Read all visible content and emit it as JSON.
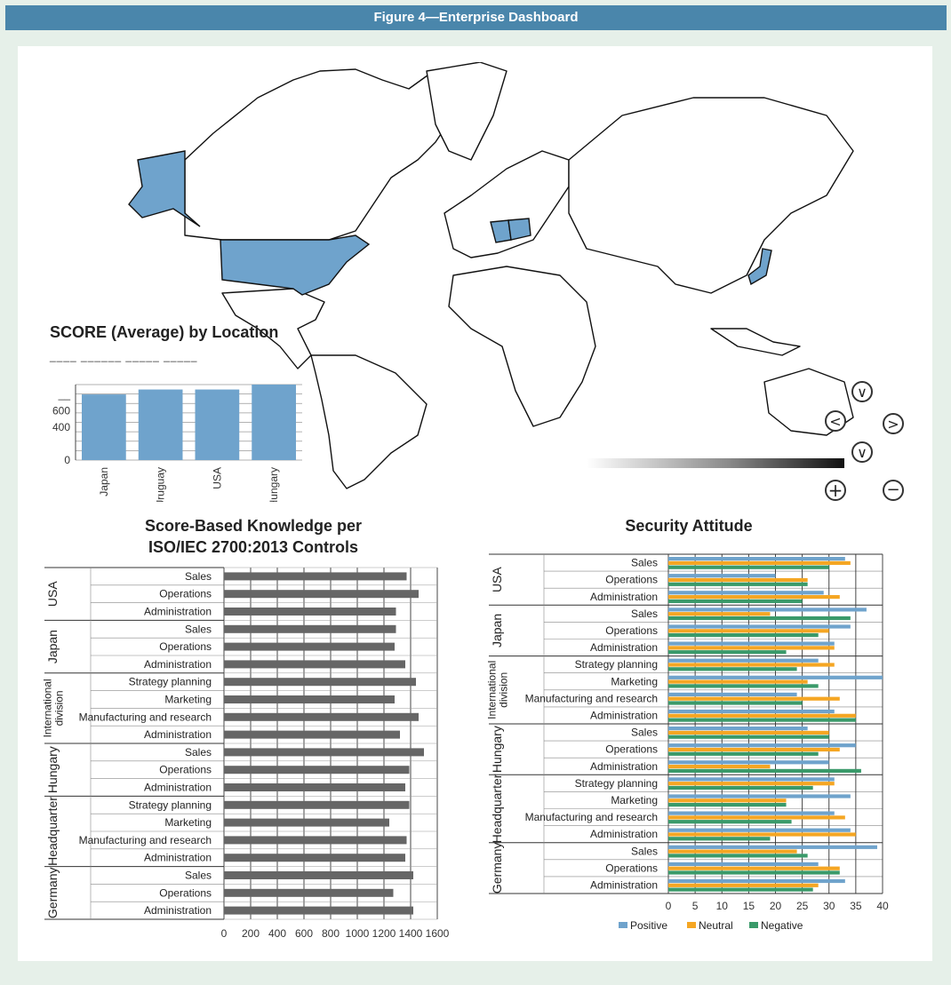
{
  "page": {
    "figure_title": "Figure 4—Enterprise Dashboard"
  },
  "map": {
    "highlighted_countries": [
      "USA",
      "Alaska (USA)",
      "Germany",
      "Poland",
      "Japan"
    ],
    "highlight_color": "#6fa3cc",
    "controls": {
      "up": "∨",
      "left": "<",
      "right": ">",
      "down": "∨",
      "zoom_in": "+",
      "zoom_out": "−"
    },
    "gradient_colors": [
      "#ffffff",
      "#111111"
    ]
  },
  "chart_data": [
    {
      "id": "score_by_location",
      "type": "bar",
      "title": "SCORE (Average) by Location",
      "subtitle": "____  ______  _____  _____",
      "categories": [
        "Japan",
        "Uruguay",
        "USA",
        "Hungary"
      ],
      "values": [
        800,
        860,
        860,
        920
      ],
      "yticks": [
        "0",
        "400",
        "600",
        "__"
      ],
      "ylim": [
        0,
        920
      ],
      "color": "#6fa3cc",
      "grid": true
    },
    {
      "id": "score_knowledge",
      "type": "bar",
      "orientation": "horizontal",
      "title_lines": [
        "Score-Based Knowledge per",
        "ISO/IEC 2700:2013 Controls"
      ],
      "groups": [
        {
          "name": "USA",
          "items": [
            {
              "label": "Sales",
              "value": 1370
            },
            {
              "label": "Operations",
              "value": 1460
            },
            {
              "label": "Administration",
              "value": 1290
            }
          ]
        },
        {
          "name": "Japan",
          "items": [
            {
              "label": "Sales",
              "value": 1290
            },
            {
              "label": "Operations",
              "value": 1280
            },
            {
              "label": "Administration",
              "value": 1360
            }
          ]
        },
        {
          "name": "International division",
          "name_lines": [
            "International",
            "division"
          ],
          "items": [
            {
              "label": "Strategy planning",
              "value": 1440
            },
            {
              "label": "Marketing",
              "value": 1280
            },
            {
              "label": "Manufacturing and research",
              "value": 1460
            },
            {
              "label": "Administration",
              "value": 1320
            }
          ]
        },
        {
          "name": "Hungary",
          "items": [
            {
              "label": "Sales",
              "value": 1500
            },
            {
              "label": "Operations",
              "value": 1390
            },
            {
              "label": "Administration",
              "value": 1360
            }
          ]
        },
        {
          "name": "Headquarter",
          "items": [
            {
              "label": "Strategy planning",
              "value": 1390
            },
            {
              "label": "Marketing",
              "value": 1240
            },
            {
              "label": "Manufacturing and research",
              "value": 1370
            },
            {
              "label": "Administration",
              "value": 1360
            }
          ]
        },
        {
          "name": "Germany",
          "items": [
            {
              "label": "Sales",
              "value": 1420
            },
            {
              "label": "Operations",
              "value": 1270
            },
            {
              "label": "Administration",
              "value": 1420
            }
          ]
        }
      ],
      "xticks": [
        0,
        200,
        400,
        600,
        800,
        1000,
        1200,
        1400,
        1600
      ],
      "xlim": [
        0,
        1600
      ],
      "color": "#666666",
      "grid": true
    },
    {
      "id": "security_attitude",
      "type": "bar",
      "orientation": "horizontal",
      "title": "Security Attitude",
      "series": [
        {
          "name": "Positive",
          "color": "#6fa3cc"
        },
        {
          "name": "Neutral",
          "color": "#f5a623"
        },
        {
          "name": "Negative",
          "color": "#3a9a6a"
        }
      ],
      "groups": [
        {
          "name": "USA",
          "items": [
            {
              "label": "Sales",
              "values": [
                33,
                34,
                30
              ]
            },
            {
              "label": "Operations",
              "values": [
                20,
                26,
                26
              ]
            },
            {
              "label": "Administration",
              "values": [
                29,
                32,
                25
              ]
            }
          ]
        },
        {
          "name": "Japan",
          "items": [
            {
              "label": "Sales",
              "values": [
                37,
                19,
                34
              ]
            },
            {
              "label": "Operations",
              "values": [
                34,
                30,
                28
              ]
            },
            {
              "label": "Administration",
              "values": [
                31,
                31,
                22
              ]
            }
          ]
        },
        {
          "name": "International division",
          "name_lines": [
            "International",
            "division"
          ],
          "items": [
            {
              "label": "Strategy planning",
              "values": [
                28,
                31,
                24
              ]
            },
            {
              "label": "Marketing",
              "values": [
                41,
                26,
                28
              ]
            },
            {
              "label": "Manufacturing and research",
              "values": [
                24,
                32,
                25
              ]
            },
            {
              "label": "Administration",
              "values": [
                31,
                35,
                35
              ]
            }
          ]
        },
        {
          "name": "Hungary",
          "items": [
            {
              "label": "Sales",
              "values": [
                26,
                30,
                30
              ]
            },
            {
              "label": "Operations",
              "values": [
                35,
                32,
                28
              ]
            },
            {
              "label": "Administration",
              "values": [
                30,
                19,
                36
              ]
            }
          ]
        },
        {
          "name": "Headquarter",
          "items": [
            {
              "label": "Strategy planning",
              "values": [
                31,
                31,
                27
              ]
            },
            {
              "label": "Marketing",
              "values": [
                34,
                22,
                22
              ]
            },
            {
              "label": "Manufacturing and research",
              "values": [
                31,
                33,
                23
              ]
            },
            {
              "label": "Administration",
              "values": [
                34,
                35,
                19
              ]
            }
          ]
        },
        {
          "name": "Germany",
          "items": [
            {
              "label": "Sales",
              "values": [
                39,
                24,
                26
              ]
            },
            {
              "label": "Operations",
              "values": [
                28,
                32,
                32
              ]
            },
            {
              "label": "Administration",
              "values": [
                33,
                28,
                27
              ]
            }
          ]
        }
      ],
      "xticks": [
        0,
        5,
        10,
        15,
        20,
        25,
        30,
        35,
        40
      ],
      "xlim": [
        0,
        40
      ],
      "grid": true,
      "legend_position": "bottom"
    }
  ]
}
